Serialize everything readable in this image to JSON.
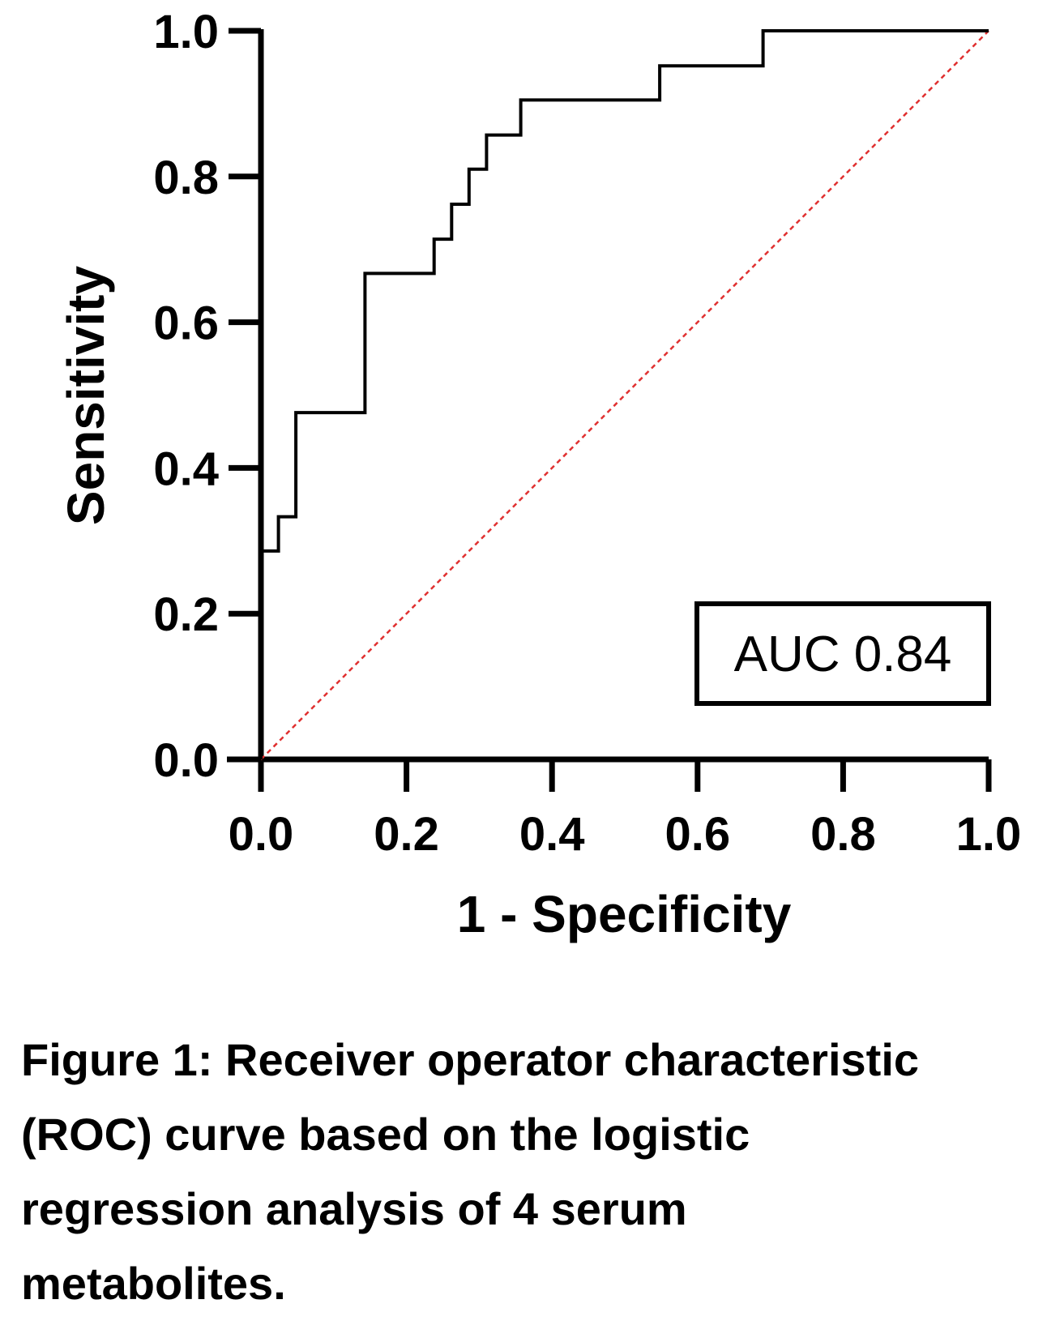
{
  "chart_data": {
    "type": "line",
    "title": "",
    "xlabel": "1 - Specificity",
    "ylabel": "Sensitivity",
    "xlim": [
      0,
      1
    ],
    "ylim": [
      0,
      1
    ],
    "x_ticks": [
      "0.0",
      "0.2",
      "0.4",
      "0.6",
      "0.8",
      "1.0"
    ],
    "y_ticks": [
      "0.0",
      "0.2",
      "0.4",
      "0.6",
      "0.8",
      "1.0"
    ],
    "grid": false,
    "legend": "none",
    "annotation": "AUC 0.84",
    "series": [
      {
        "style": "step",
        "color": "#000000",
        "x": [
          0,
          0,
          0.024,
          0.024,
          0.048,
          0.048,
          0.143,
          0.143,
          0.238,
          0.238,
          0.262,
          0.262,
          0.286,
          0.286,
          0.31,
          0.31,
          0.357,
          0.357,
          0.548,
          0.548,
          0.69,
          0.69,
          1.0
        ],
        "y": [
          0,
          0.286,
          0.286,
          0.333,
          0.333,
          0.476,
          0.476,
          0.667,
          0.667,
          0.714,
          0.714,
          0.762,
          0.762,
          0.81,
          0.81,
          0.857,
          0.857,
          0.905,
          0.905,
          0.952,
          0.952,
          1.0,
          1.0
        ]
      },
      {
        "style": "dashed",
        "color": "#e03030",
        "x": [
          0,
          1
        ],
        "y": [
          0,
          1
        ]
      }
    ]
  },
  "caption_lines": [
    "Figure 1: Receiver operator characteristic",
    "(ROC) curve based on the logistic",
    "regression analysis of 4 serum",
    "metabolites."
  ]
}
